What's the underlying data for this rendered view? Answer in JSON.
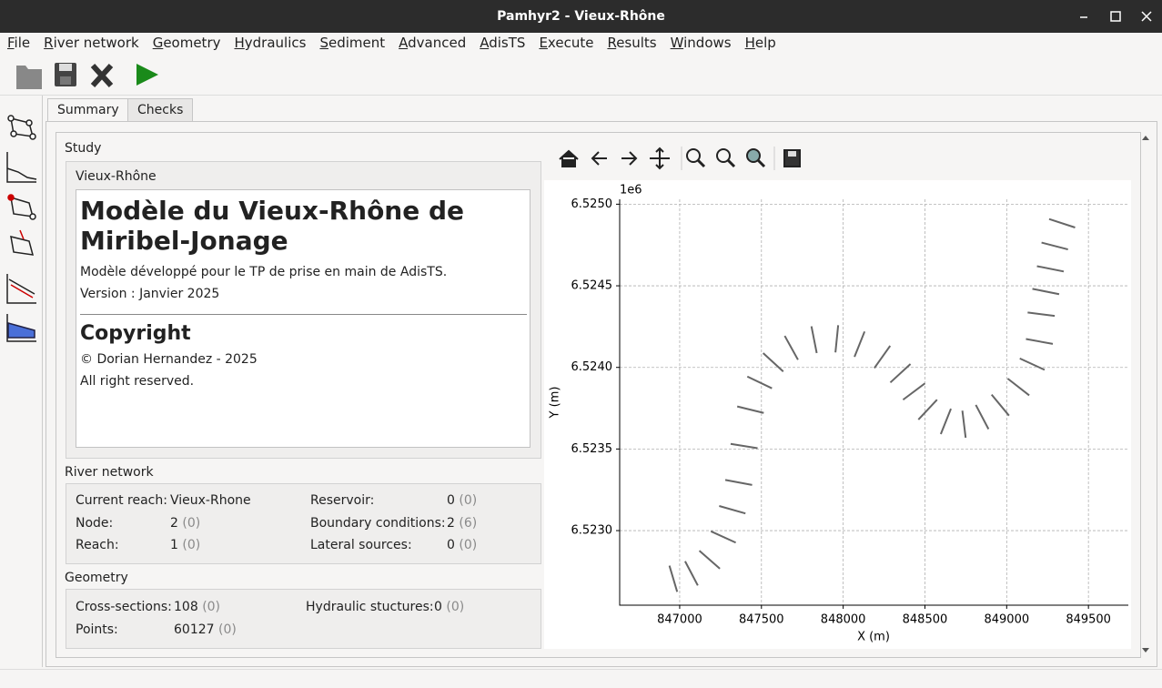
{
  "window": {
    "title": "Pamhyr2 - Vieux-Rhône"
  },
  "menu": [
    "File",
    "River network",
    "Geometry",
    "Hydraulics",
    "Sediment",
    "Advanced",
    "AdisTS",
    "Execute",
    "Results",
    "Windows",
    "Help"
  ],
  "tabs": [
    "Summary",
    "Checks"
  ],
  "study": {
    "group_title": "Study",
    "name": "Vieux-Rhône",
    "heading": "Modèle du Vieux-Rhône de Miribel-Jonage",
    "description": "Modèle développé pour le TP de prise en main de AdisTS.",
    "version": "Version : Janvier 2025",
    "copyright_heading": "Copyright",
    "copyright": "© Dorian Hernandez - 2025",
    "rights": "All right reserved."
  },
  "river_network": {
    "title": "River network",
    "items": [
      {
        "label": "Current reach:",
        "value": "Vieux-Rhone",
        "extra": ""
      },
      {
        "label": "Node:",
        "value": "2",
        "extra": "(0)"
      },
      {
        "label": "Reach:",
        "value": "1",
        "extra": "(0)"
      },
      {
        "label": "Reservoir:",
        "value": "0",
        "extra": "(0)"
      },
      {
        "label": "Boundary conditions:",
        "value": "2",
        "extra": "(6)"
      },
      {
        "label": "Lateral sources:",
        "value": "0",
        "extra": "(0)"
      }
    ]
  },
  "geometry": {
    "title": "Geometry",
    "items": [
      {
        "label": "Cross-sections:",
        "value": "108",
        "extra": "(0)"
      },
      {
        "label": "Points:",
        "value": "60127",
        "extra": "(0)"
      },
      {
        "label": "Hydraulic stuctures:",
        "value": "0",
        "extra": "(0)"
      }
    ]
  },
  "plot": {
    "xlabel": "X (m)",
    "ylabel": "Y (m)",
    "offset_label": "1e6",
    "grid": true,
    "color": "#666666",
    "xlim": [
      846633,
      849744
    ],
    "ylim": [
      6.522543,
      6.52503
    ],
    "xticks": [
      847000,
      847500,
      848000,
      848500,
      849000,
      849500
    ],
    "yticks": [
      {
        "value": 6.523,
        "label": "6.5230"
      },
      {
        "value": 6.5235,
        "label": "6.5235"
      },
      {
        "value": 6.524,
        "label": "6.5240"
      },
      {
        "value": 6.5245,
        "label": "6.5245"
      },
      {
        "value": 6.525,
        "label": "6.5250"
      }
    ],
    "x": [
      846961,
      847072,
      847183,
      847267,
      847322,
      847361,
      847394,
      847433,
      847489,
      847572,
      847683,
      847822,
      847961,
      848100,
      848239,
      848350,
      848433,
      848517,
      848628,
      848739,
      848850,
      848961,
      849072,
      849156,
      849200,
      849211,
      849239,
      849267,
      849294,
      849339
    ],
    "y": [
      6.522705,
      6.522738,
      6.522822,
      6.522961,
      6.523128,
      6.523295,
      6.523518,
      6.523741,
      6.523908,
      6.524031,
      6.52412,
      6.52417,
      6.524175,
      6.524142,
      6.524064,
      6.523964,
      6.523852,
      6.523741,
      6.523669,
      6.523652,
      6.523696,
      6.523769,
      6.52388,
      6.52402,
      6.524159,
      6.524326,
      6.524465,
      6.524604,
      6.524744,
      6.524883
    ]
  }
}
